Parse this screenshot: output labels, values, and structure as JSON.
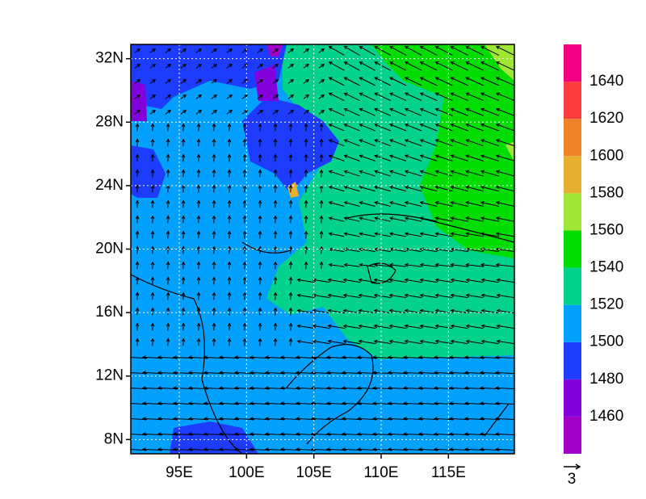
{
  "map": {
    "lon_ticks": [
      {
        "value": 95,
        "label": "95E"
      },
      {
        "value": 100,
        "label": "100E"
      },
      {
        "value": 105,
        "label": "105E"
      },
      {
        "value": 110,
        "label": "110E"
      },
      {
        "value": 115,
        "label": "115E"
      }
    ],
    "lat_ticks": [
      {
        "value": 8,
        "label": "8N"
      },
      {
        "value": 12,
        "label": "12N"
      },
      {
        "value": 16,
        "label": "16N"
      },
      {
        "value": 20,
        "label": "20N"
      },
      {
        "value": 24,
        "label": "24N"
      },
      {
        "value": 28,
        "label": "28N"
      },
      {
        "value": 32,
        "label": "32N"
      }
    ],
    "lonlim": [
      91.4,
      119.9
    ],
    "latlim": [
      7.1,
      32.9
    ],
    "grid": true,
    "colorbar": {
      "levels": [
        1460,
        1480,
        1500,
        1520,
        1540,
        1560,
        1580,
        1600,
        1620,
        1640
      ],
      "colors": [
        "#a000c8",
        "#8200dc",
        "#1e3cff",
        "#00a0ff",
        "#00d28c",
        "#00dc00",
        "#a0e632",
        "#e6af2d",
        "#f08228",
        "#fa3c3c",
        "#f00082"
      ]
    },
    "vector_reference": "3"
  }
}
